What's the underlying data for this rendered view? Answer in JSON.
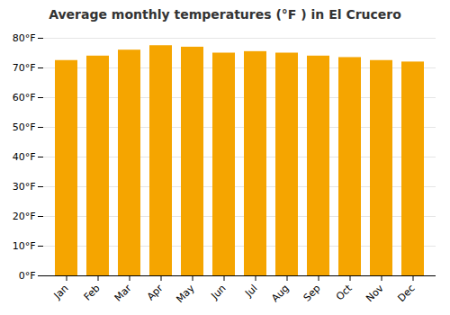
{
  "chart_data": {
    "type": "bar",
    "title": "Average monthly temperatures (°F ) in El Crucero",
    "categories": [
      "Jan",
      "Feb",
      "Mar",
      "Apr",
      "May",
      "Jun",
      "Jul",
      "Aug",
      "Sep",
      "Oct",
      "Nov",
      "Dec"
    ],
    "values": [
      72.5,
      74.0,
      76.0,
      77.5,
      77.0,
      75.0,
      75.5,
      75.0,
      74.0,
      73.5,
      72.5,
      72.0
    ],
    "color": "#F5A500",
    "ylim": [
      0,
      80
    ],
    "yticks": [
      {
        "value": 0,
        "label": "0°F"
      },
      {
        "value": 10,
        "label": "10°F"
      },
      {
        "value": 20,
        "label": "20°F"
      },
      {
        "value": 30,
        "label": "30°F"
      },
      {
        "value": 40,
        "label": "40°F"
      },
      {
        "value": 50,
        "label": "50°F"
      },
      {
        "value": 60,
        "label": "60°F"
      },
      {
        "value": 70,
        "label": "70°F"
      },
      {
        "value": 80,
        "label": "80°F"
      }
    ],
    "grid": true
  }
}
